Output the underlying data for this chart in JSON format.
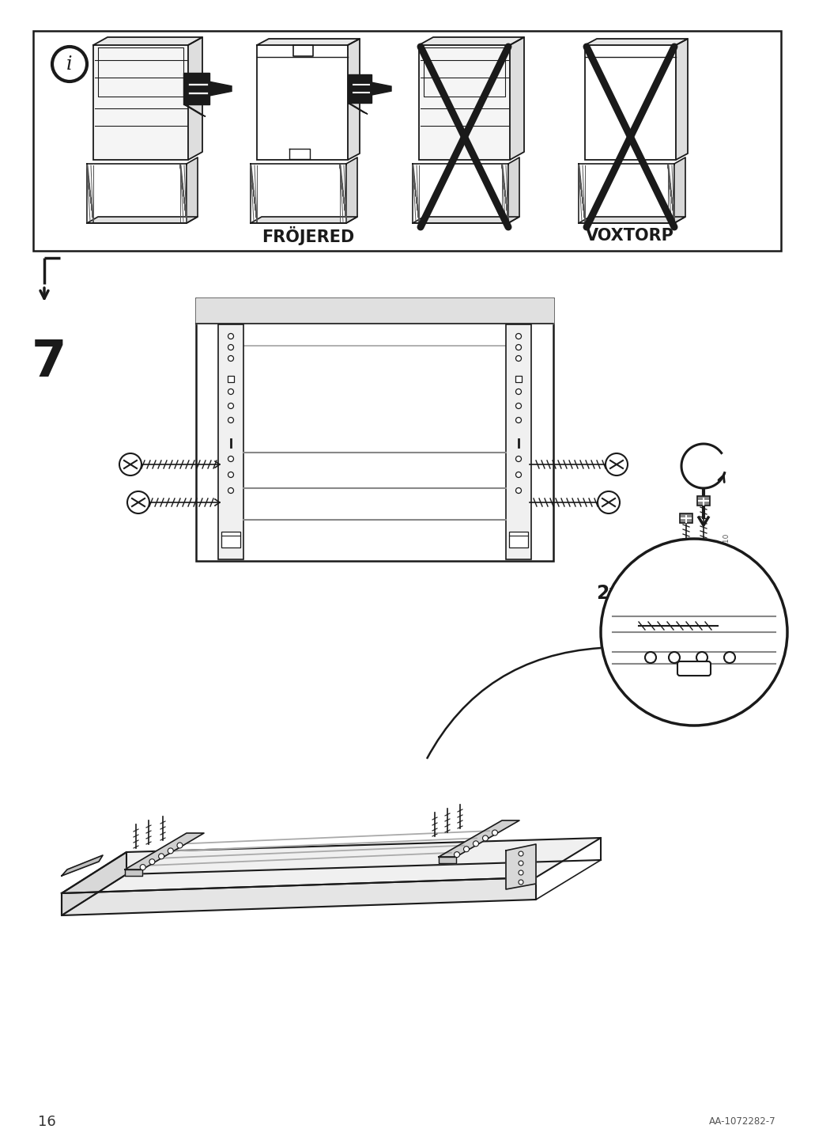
{
  "page_number": "16",
  "doc_code": "AA-1072282-7",
  "background_color": "#ffffff",
  "line_color": "#1a1a1a",
  "frojered_label": "FRÖJERED",
  "voxtorp_label": "VOXTORP",
  "step_number": "7",
  "screw_count": "2x",
  "fig_w": 10.12,
  "fig_h": 14.32,
  "dpi": 100
}
